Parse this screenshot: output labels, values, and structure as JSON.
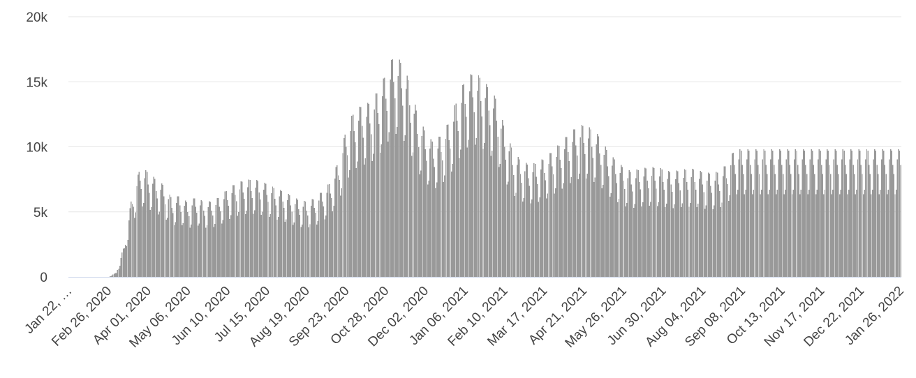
{
  "chart_data": {
    "type": "bar",
    "title": "",
    "xlabel": "",
    "ylabel": "",
    "ylim": [
      0,
      20000
    ],
    "y_ticks": [
      0,
      5000,
      10000,
      15000,
      20000
    ],
    "y_tick_labels": [
      "0",
      "5k",
      "10k",
      "15k",
      "20k"
    ],
    "x_tick_labels": [
      "Jan 22, …",
      "Feb 26, 2020",
      "Apr 01, 2020",
      "May 06, 2020",
      "Jun 10, 2020",
      "Jul 15, 2020",
      "Aug 19, 2020",
      "Sep 23, 2020",
      "Oct 28, 2020",
      "Dec 02, 2020",
      "Jan 06, 2021",
      "Feb 10, 2021",
      "Mar 17, 2021",
      "Apr 21, 2021",
      "May 26, 2021",
      "Jun 30, 2021",
      "Aug 04, 2021",
      "Sep 08, 2021",
      "Oct 13, 2021",
      "Nov 17, 2021",
      "Dec 22, 2021",
      "Jan 26, 2022"
    ],
    "x_start": "2020-01-22",
    "x_end": "2022-01-26",
    "grid": true,
    "legend": "none",
    "bar_color": "#999999",
    "series": [
      {
        "weekly_values": [
          0,
          0,
          0,
          0,
          0,
          0,
          300,
          2200,
          5600,
          7400,
          7100,
          6600,
          6200,
          5300,
          5500,
          5000,
          5400,
          5100,
          5100,
          5400,
          5900,
          6300,
          6500,
          6600,
          6500,
          6300,
          6000,
          5800,
          5500,
          5200,
          5100,
          5300,
          5800,
          6400,
          7800,
          10000,
          11200,
          11600,
          11800,
          12600,
          13700,
          15000,
          14500,
          13200,
          11000,
          9800,
          9100,
          9600,
          10500,
          12000,
          13300,
          13800,
          13500,
          12800,
          12000,
          10000,
          8600,
          7900,
          7600,
          7700,
          8000,
          8500,
          9000,
          9600,
          10100,
          10300,
          10000,
          9500,
          8500,
          7900,
          7400,
          7100,
          7300,
          7400,
          7400,
          7300,
          7100,
          7200,
          7300,
          7300,
          7100,
          7000,
          7100,
          7600,
          8600
        ]
      }
    ]
  }
}
